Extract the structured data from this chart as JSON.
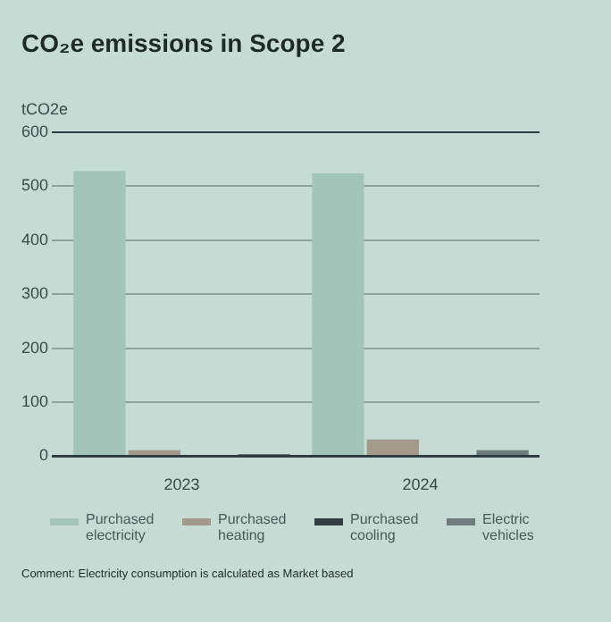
{
  "chart_data": {
    "type": "bar",
    "title": "CO₂e emissions in Scope 2",
    "ylabel": "tCO2e",
    "categories": [
      "2023",
      "2024"
    ],
    "series": [
      {
        "name": "Purchased electricity",
        "color": "#a3c4b8",
        "values": [
          528,
          524
        ]
      },
      {
        "name": "Purchased heating",
        "color": "#a39a8c",
        "values": [
          11,
          31
        ]
      },
      {
        "name": "Purchased cooling",
        "color": "#2f3d40",
        "values": [
          0,
          0
        ]
      },
      {
        "name": "Electric vehicles",
        "color": "#6e7d7c",
        "values": [
          4,
          11
        ]
      }
    ],
    "ylim": [
      0,
      600
    ],
    "yticks": [
      0,
      100,
      200,
      300,
      400,
      500,
      600
    ],
    "grid": "y",
    "legend": "bottom",
    "annotations": [
      "Comment: Electricity consumption is calculated as Market based"
    ]
  }
}
